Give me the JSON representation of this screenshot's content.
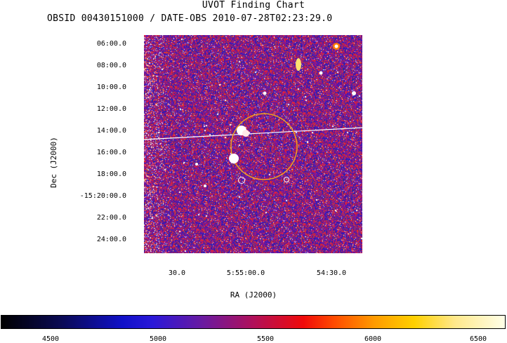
{
  "title": "UVOT Finding Chart",
  "subtitle": "OBSID 00430151000 / DATE-OBS 2010-07-28T02:23:29.0",
  "axes": {
    "xlabel": "RA (J2000)",
    "ylabel": "Dec (J2000)",
    "dec_ticks": [
      "06:00.0",
      "08:00.0",
      "10:00.0",
      "12:00.0",
      "14:00.0",
      "16:00.0",
      "18:00.0",
      "-15:20:00.0",
      "22:00.0",
      "24:00.0"
    ],
    "ra_ticks": [
      "30.0",
      "5:55:00.0",
      "54:30.0"
    ]
  },
  "colorbar": {
    "labels": [
      "4500",
      "5000",
      "5500",
      "6000",
      "6500"
    ],
    "colormap": "blue-red-yellow-white"
  },
  "colors": {
    "background": "#3b1aa8",
    "noise_red": "#d01030",
    "circle": "#f0a020",
    "marker": "#ffffff"
  }
}
